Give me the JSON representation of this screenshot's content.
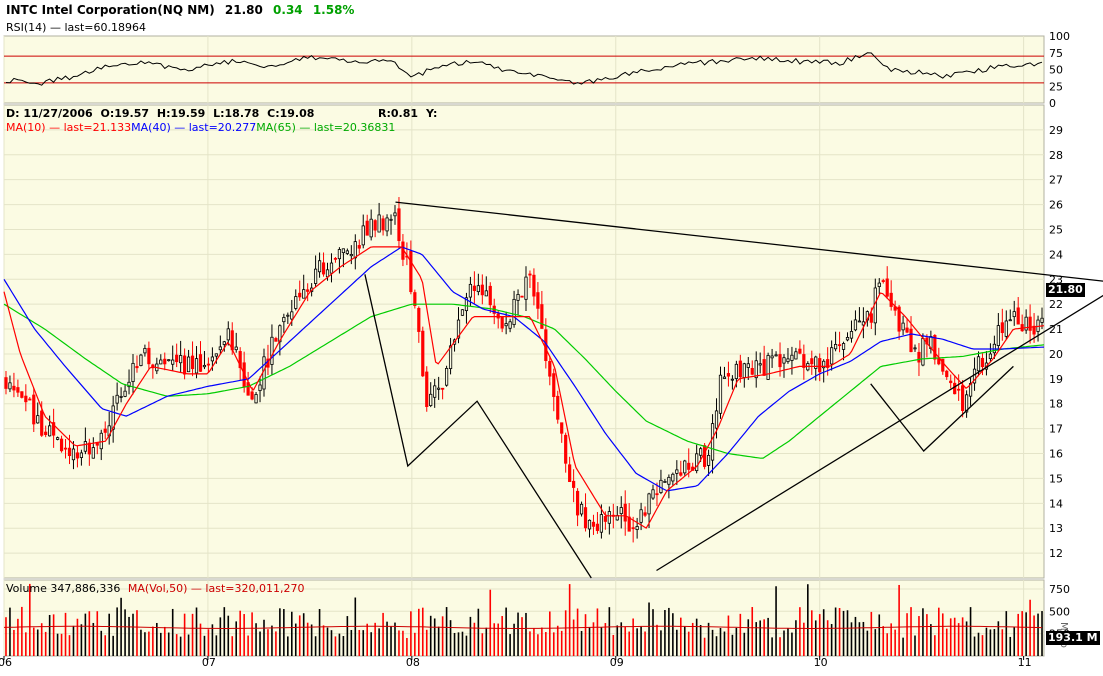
{
  "header": {
    "symbol": "INTC Intel Corporation(NQ NM)",
    "last": "21.80",
    "change": "0.34",
    "change_pct": "1.58%"
  },
  "rsi": {
    "label": "RSI(14)",
    "last_text": "— last=60.18964",
    "ticks": [
      100,
      75,
      50,
      25,
      0
    ],
    "overbought": 70,
    "oversold": 30
  },
  "price_info": {
    "date_text": "D: 11/27/2006",
    "open_text": "O:19.57",
    "high_text": "H:19.59",
    "low_text": "L:18.78",
    "close_text": "C:19.08",
    "r_text": "R:0.81",
    "y_text": "Y:",
    "ma10_text": "MA(10) — last=21.133",
    "ma40_text": "MA(40) — last=20.277",
    "ma65_text": "MA(65) — last=20.36831",
    "last_value": "21.80"
  },
  "volume": {
    "label": "Volume 347,886,336",
    "ma_text": "MA(Vol,50) — last=320,011,270",
    "ticks": [
      "750",
      "500",
      "250"
    ],
    "units": "Millio",
    "last_value": "193.1 M"
  },
  "colors": {
    "background": "#fbfbe3",
    "up": "#000000",
    "down": "#ff0000",
    "ma10": "#ff0000",
    "ma40": "#0000ff",
    "ma65": "#00cc00",
    "change": "#00a000",
    "rsi_band": "#cc0000"
  },
  "chart_data": {
    "type": "candlestick",
    "ylim": [
      11,
      30
    ],
    "y_ticks": [
      12,
      13,
      14,
      15,
      16,
      17,
      18,
      19,
      20,
      21,
      22,
      23,
      24,
      25,
      26,
      27,
      28,
      29
    ],
    "x_ticks": [
      "06",
      "07",
      "08",
      "09",
      "10",
      "11"
    ],
    "x_tick_months": [
      2006.0,
      2007.0,
      2008.0,
      2009.0,
      2010.0,
      2011.0
    ],
    "x_range": [
      2006.0,
      2011.1
    ],
    "close_anchors": [
      [
        2006.0,
        19.0
      ],
      [
        2006.1,
        18.0
      ],
      [
        2006.2,
        17.0
      ],
      [
        2006.32,
        16.0
      ],
      [
        2006.45,
        16.5
      ],
      [
        2006.55,
        18.0
      ],
      [
        2006.68,
        20.0
      ],
      [
        2006.85,
        19.5
      ],
      [
        2007.0,
        19.5
      ],
      [
        2007.1,
        21.0
      ],
      [
        2007.2,
        18.0
      ],
      [
        2007.35,
        21.0
      ],
      [
        2007.5,
        23.0
      ],
      [
        2007.65,
        24.0
      ],
      [
        2007.8,
        25.0
      ],
      [
        2007.92,
        25.5
      ],
      [
        2008.02,
        22.0
      ],
      [
        2008.07,
        18.0
      ],
      [
        2008.15,
        19.0
      ],
      [
        2008.3,
        23.0
      ],
      [
        2008.45,
        21.0
      ],
      [
        2008.58,
        23.0
      ],
      [
        2008.7,
        18.0
      ],
      [
        2008.8,
        14.0
      ],
      [
        2008.88,
        13.0
      ],
      [
        2009.0,
        14.0
      ],
      [
        2009.08,
        12.5
      ],
      [
        2009.18,
        14.5
      ],
      [
        2009.3,
        15.0
      ],
      [
        2009.45,
        16.0
      ],
      [
        2009.52,
        19.0
      ],
      [
        2009.6,
        19.5
      ],
      [
        2009.72,
        19.5
      ],
      [
        2009.85,
        20.0
      ],
      [
        2010.0,
        19.5
      ],
      [
        2010.1,
        20.5
      ],
      [
        2010.25,
        21.5
      ],
      [
        2010.3,
        23.5
      ],
      [
        2010.4,
        21.0
      ],
      [
        2010.48,
        20.0
      ],
      [
        2010.55,
        20.5
      ],
      [
        2010.62,
        19.0
      ],
      [
        2010.7,
        18.0
      ],
      [
        2010.78,
        19.5
      ],
      [
        2010.88,
        21.0
      ],
      [
        2010.95,
        21.5
      ],
      [
        2011.05,
        21.0
      ],
      [
        2011.1,
        21.8
      ]
    ],
    "ma10_anchors": [
      [
        2006.0,
        22.5
      ],
      [
        2006.08,
        20.0
      ],
      [
        2006.2,
        17.5
      ],
      [
        2006.35,
        16.3
      ],
      [
        2006.5,
        16.5
      ],
      [
        2006.6,
        18.0
      ],
      [
        2006.72,
        19.5
      ],
      [
        2006.9,
        19.2
      ],
      [
        2007.0,
        19.2
      ],
      [
        2007.1,
        20.5
      ],
      [
        2007.22,
        18.5
      ],
      [
        2007.35,
        20.5
      ],
      [
        2007.5,
        22.5
      ],
      [
        2007.65,
        23.5
      ],
      [
        2007.8,
        24.3
      ],
      [
        2007.95,
        24.3
      ],
      [
        2008.05,
        23.0
      ],
      [
        2008.12,
        19.5
      ],
      [
        2008.3,
        21.5
      ],
      [
        2008.45,
        21.5
      ],
      [
        2008.58,
        21.5
      ],
      [
        2008.7,
        19.5
      ],
      [
        2008.8,
        15.5
      ],
      [
        2008.95,
        13.5
      ],
      [
        2009.05,
        13.5
      ],
      [
        2009.15,
        13.0
      ],
      [
        2009.25,
        14.5
      ],
      [
        2009.4,
        15.5
      ],
      [
        2009.5,
        17.0
      ],
      [
        2009.6,
        19.0
      ],
      [
        2009.75,
        19.2
      ],
      [
        2009.9,
        19.5
      ],
      [
        2010.05,
        19.5
      ],
      [
        2010.15,
        20.0
      ],
      [
        2010.3,
        22.5
      ],
      [
        2010.42,
        21.5
      ],
      [
        2010.52,
        20.5
      ],
      [
        2010.62,
        19.5
      ],
      [
        2010.72,
        18.6
      ],
      [
        2010.85,
        19.8
      ],
      [
        2010.95,
        21.0
      ],
      [
        2011.1,
        21.133
      ]
    ],
    "ma40_anchors": [
      [
        2006.0,
        23.0
      ],
      [
        2006.15,
        21.0
      ],
      [
        2006.3,
        19.5
      ],
      [
        2006.48,
        17.8
      ],
      [
        2006.6,
        17.5
      ],
      [
        2006.8,
        18.3
      ],
      [
        2007.0,
        18.7
      ],
      [
        2007.2,
        19.0
      ],
      [
        2007.4,
        20.5
      ],
      [
        2007.6,
        22.0
      ],
      [
        2007.8,
        23.5
      ],
      [
        2007.95,
        24.3
      ],
      [
        2008.05,
        24.0
      ],
      [
        2008.2,
        22.5
      ],
      [
        2008.35,
        21.8
      ],
      [
        2008.5,
        21.5
      ],
      [
        2008.65,
        20.5
      ],
      [
        2008.8,
        18.7
      ],
      [
        2008.95,
        16.8
      ],
      [
        2009.1,
        15.2
      ],
      [
        2009.25,
        14.5
      ],
      [
        2009.4,
        14.7
      ],
      [
        2009.55,
        16.0
      ],
      [
        2009.7,
        17.5
      ],
      [
        2009.85,
        18.5
      ],
      [
        2010.0,
        19.2
      ],
      [
        2010.15,
        19.7
      ],
      [
        2010.3,
        20.5
      ],
      [
        2010.45,
        20.8
      ],
      [
        2010.6,
        20.6
      ],
      [
        2010.75,
        20.2
      ],
      [
        2010.9,
        20.2
      ],
      [
        2011.1,
        20.277
      ]
    ],
    "ma65_anchors": [
      [
        2006.0,
        22.0
      ],
      [
        2006.2,
        21.0
      ],
      [
        2006.4,
        19.8
      ],
      [
        2006.58,
        18.8
      ],
      [
        2006.8,
        18.3
      ],
      [
        2007.0,
        18.4
      ],
      [
        2007.2,
        18.7
      ],
      [
        2007.4,
        19.5
      ],
      [
        2007.6,
        20.5
      ],
      [
        2007.8,
        21.5
      ],
      [
        2008.0,
        22.0
      ],
      [
        2008.2,
        22.0
      ],
      [
        2008.4,
        21.8
      ],
      [
        2008.55,
        21.5
      ],
      [
        2008.7,
        21.0
      ],
      [
        2008.85,
        19.8
      ],
      [
        2009.0,
        18.5
      ],
      [
        2009.15,
        17.3
      ],
      [
        2009.35,
        16.5
      ],
      [
        2009.55,
        16.0
      ],
      [
        2009.72,
        15.8
      ],
      [
        2009.85,
        16.5
      ],
      [
        2010.0,
        17.5
      ],
      [
        2010.15,
        18.5
      ],
      [
        2010.3,
        19.5
      ],
      [
        2010.5,
        19.8
      ],
      [
        2010.7,
        19.9
      ],
      [
        2010.9,
        20.2
      ],
      [
        2011.1,
        20.368
      ]
    ],
    "trendlines": [
      {
        "name": "resistance",
        "from": [
          2007.92,
          26.1
        ],
        "to": [
          2011.42,
          22.9
        ]
      },
      {
        "name": "support",
        "from": [
          2009.2,
          11.3
        ],
        "to": [
          2011.42,
          22.5
        ]
      },
      {
        "name": "pattern",
        "points": [
          [
            2007.77,
            23.2
          ],
          [
            2007.98,
            15.5
          ],
          [
            2008.32,
            18.1
          ],
          [
            2008.88,
            11.0
          ]
        ]
      },
      {
        "name": "pattern-2",
        "points": [
          [
            2010.25,
            18.8
          ],
          [
            2010.51,
            16.1
          ],
          [
            2010.95,
            19.5
          ]
        ]
      }
    ],
    "rsi_anchors": [
      [
        2006.0,
        35
      ],
      [
        2006.15,
        28
      ],
      [
        2006.35,
        40
      ],
      [
        2006.5,
        55
      ],
      [
        2006.7,
        60
      ],
      [
        2006.9,
        50
      ],
      [
        2007.1,
        62
      ],
      [
        2007.3,
        55
      ],
      [
        2007.5,
        70
      ],
      [
        2007.7,
        60
      ],
      [
        2007.9,
        66
      ],
      [
        2008.0,
        36
      ],
      [
        2008.1,
        52
      ],
      [
        2008.3,
        62
      ],
      [
        2008.5,
        45
      ],
      [
        2008.7,
        35
      ],
      [
        2008.8,
        28
      ],
      [
        2008.95,
        37
      ],
      [
        2009.1,
        45
      ],
      [
        2009.3,
        58
      ],
      [
        2009.5,
        62
      ],
      [
        2009.7,
        66
      ],
      [
        2009.9,
        62
      ],
      [
        2010.1,
        60
      ],
      [
        2010.25,
        75
      ],
      [
        2010.35,
        50
      ],
      [
        2010.5,
        45
      ],
      [
        2010.6,
        40
      ],
      [
        2010.75,
        46
      ],
      [
        2010.9,
        58
      ],
      [
        2011.0,
        55
      ],
      [
        2011.1,
        60.19
      ]
    ],
    "volume_ylim": [
      0,
      850
    ],
    "volume_ma_level": 320
  }
}
